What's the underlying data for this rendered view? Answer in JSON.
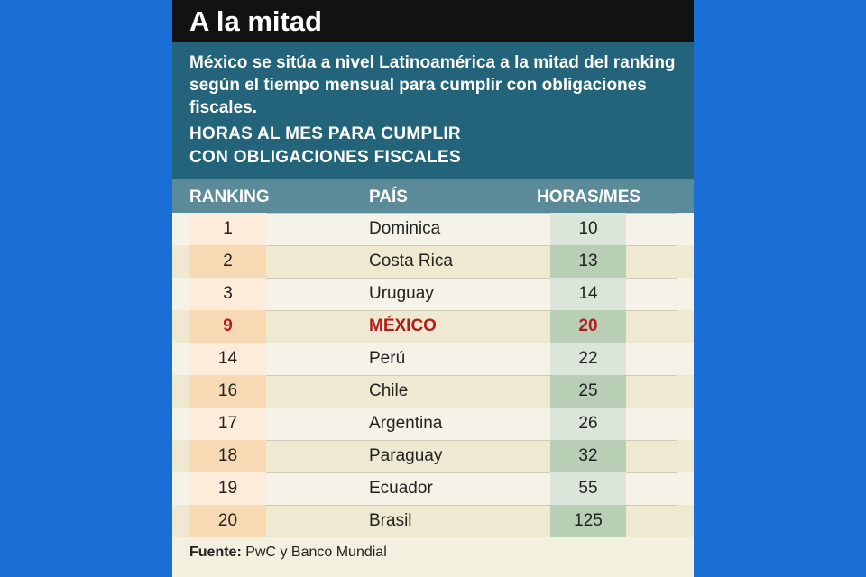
{
  "title": "A la mitad",
  "subtitle": "México se sitúa a nivel Latinoamérica a la mitad del ranking según el tiempo mensual para cumplir con obligaciones fiscales.",
  "chart_heading_line1": "HORAS AL MES PARA CUMPLIR",
  "chart_heading_line2": "CON OBLIGACIONES FISCALES",
  "columns": {
    "ranking": "RANKING",
    "country": "PAÍS",
    "hours": "HORAS/MES"
  },
  "source_label": "Fuente:",
  "source_text": "PwC y Banco Mundial",
  "colors": {
    "background": "#1a6fd6",
    "title_bar": "#121212",
    "intro": "#24647a",
    "header": "#5b8a99",
    "highlight": "#b51d1d"
  },
  "chart_data": {
    "type": "table",
    "title": "HORAS AL MES PARA CUMPLIR CON OBLIGACIONES FISCALES",
    "columns": [
      "RANKING",
      "PAÍS",
      "HORAS/MES"
    ],
    "rows": [
      {
        "rank": "1",
        "country": "Dominica",
        "hours": "10",
        "highlight": false
      },
      {
        "rank": "2",
        "country": "Costa Rica",
        "hours": "13",
        "highlight": false
      },
      {
        "rank": "3",
        "country": "Uruguay",
        "hours": "14",
        "highlight": false
      },
      {
        "rank": "9",
        "country": "MÉXICO",
        "hours": "20",
        "highlight": true
      },
      {
        "rank": "14",
        "country": "Perú",
        "hours": "22",
        "highlight": false
      },
      {
        "rank": "16",
        "country": "Chile",
        "hours": "25",
        "highlight": false
      },
      {
        "rank": "17",
        "country": "Argentina",
        "hours": "26",
        "highlight": false
      },
      {
        "rank": "18",
        "country": "Paraguay",
        "hours": "32",
        "highlight": false
      },
      {
        "rank": "19",
        "country": "Ecuador",
        "hours": "55",
        "highlight": false
      },
      {
        "rank": "20",
        "country": "Brasil",
        "hours": "125",
        "highlight": false
      }
    ]
  }
}
